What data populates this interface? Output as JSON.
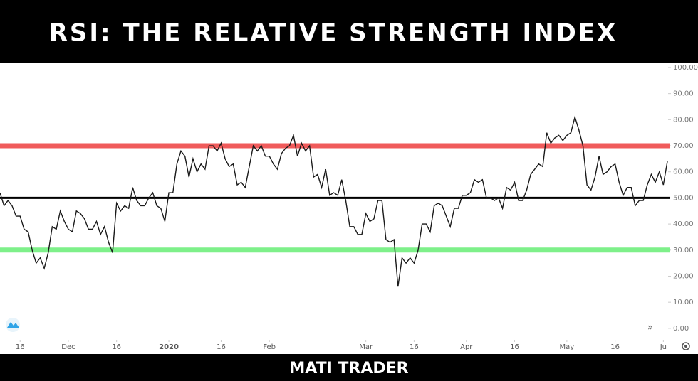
{
  "chart_data": {
    "type": "line",
    "title": "RSI: THE RELATIVE STRENGTH INDEX",
    "caption": "MATI TRADER",
    "values": [
      52,
      47,
      49,
      47,
      43,
      43,
      38,
      37,
      30,
      25,
      27,
      23,
      29,
      39,
      38,
      45,
      41,
      38,
      37,
      45,
      44,
      42,
      38,
      38,
      41,
      36,
      39,
      33,
      29,
      48,
      45,
      47,
      46,
      54,
      49,
      47,
      47,
      50,
      52,
      47,
      46,
      41,
      52,
      52,
      63,
      68,
      66,
      58,
      65,
      60,
      63,
      61,
      70,
      70,
      68,
      71,
      65,
      62,
      63,
      55,
      56,
      54,
      62,
      70,
      68,
      70,
      66,
      66,
      63,
      61,
      67,
      69,
      70,
      74,
      66,
      71,
      68,
      70,
      58,
      59,
      54,
      61,
      51,
      52,
      51,
      57,
      49,
      39,
      39,
      36,
      36,
      44,
      41,
      42,
      49,
      49,
      34,
      33,
      34,
      16,
      27,
      25,
      27,
      25,
      30,
      40,
      40,
      37,
      47,
      48,
      47,
      43,
      39,
      46,
      46,
      51,
      51,
      52,
      57,
      56,
      57,
      50,
      50,
      49,
      50,
      46,
      54,
      53,
      56,
      49,
      49,
      53,
      59,
      61,
      63,
      62,
      75,
      71,
      73,
      74,
      72,
      74,
      75,
      81,
      76,
      70,
      55,
      53,
      58,
      66,
      59,
      60,
      62,
      63,
      56,
      51,
      54,
      54,
      47,
      49,
      49,
      55,
      59,
      56,
      60,
      55,
      64
    ],
    "color": "#1a1a1a",
    "xlim": [
      0,
      166
    ],
    "xticks": [
      {
        "value": 5,
        "label": "16"
      },
      {
        "value": 17,
        "label": "Dec"
      },
      {
        "value": 29,
        "label": "16"
      },
      {
        "value": 42,
        "label": "2020"
      },
      {
        "value": 55,
        "label": "16"
      },
      {
        "value": 67,
        "label": "Feb"
      },
      {
        "value": 91,
        "label": "Mar"
      },
      {
        "value": 103,
        "label": "16"
      },
      {
        "value": 116,
        "label": "Apr"
      },
      {
        "value": 128,
        "label": "16"
      },
      {
        "value": 141,
        "label": "May"
      },
      {
        "value": 153,
        "label": "16"
      },
      {
        "value": 165,
        "label": "Ju"
      }
    ],
    "ylim": [
      -4.4,
      101.9
    ],
    "yticks": [
      {
        "value": 0,
        "label": "0.00"
      },
      {
        "value": 10,
        "label": "10.00"
      },
      {
        "value": 20,
        "label": "20.00"
      },
      {
        "value": 30,
        "label": "30.00"
      },
      {
        "value": 40,
        "label": "40.00"
      },
      {
        "value": 50,
        "label": "50.00"
      },
      {
        "value": 60,
        "label": "60.00"
      },
      {
        "value": 70,
        "label": "70.00"
      },
      {
        "value": 80,
        "label": "80.00"
      },
      {
        "value": 90,
        "label": "90.00"
      },
      {
        "value": 100,
        "label": "100.00"
      }
    ],
    "reference_lines": [
      {
        "value": 70,
        "color": "#f05b5b"
      },
      {
        "value": 50,
        "color": "#000000"
      },
      {
        "value": 30,
        "color": "#7ef08a"
      }
    ]
  }
}
